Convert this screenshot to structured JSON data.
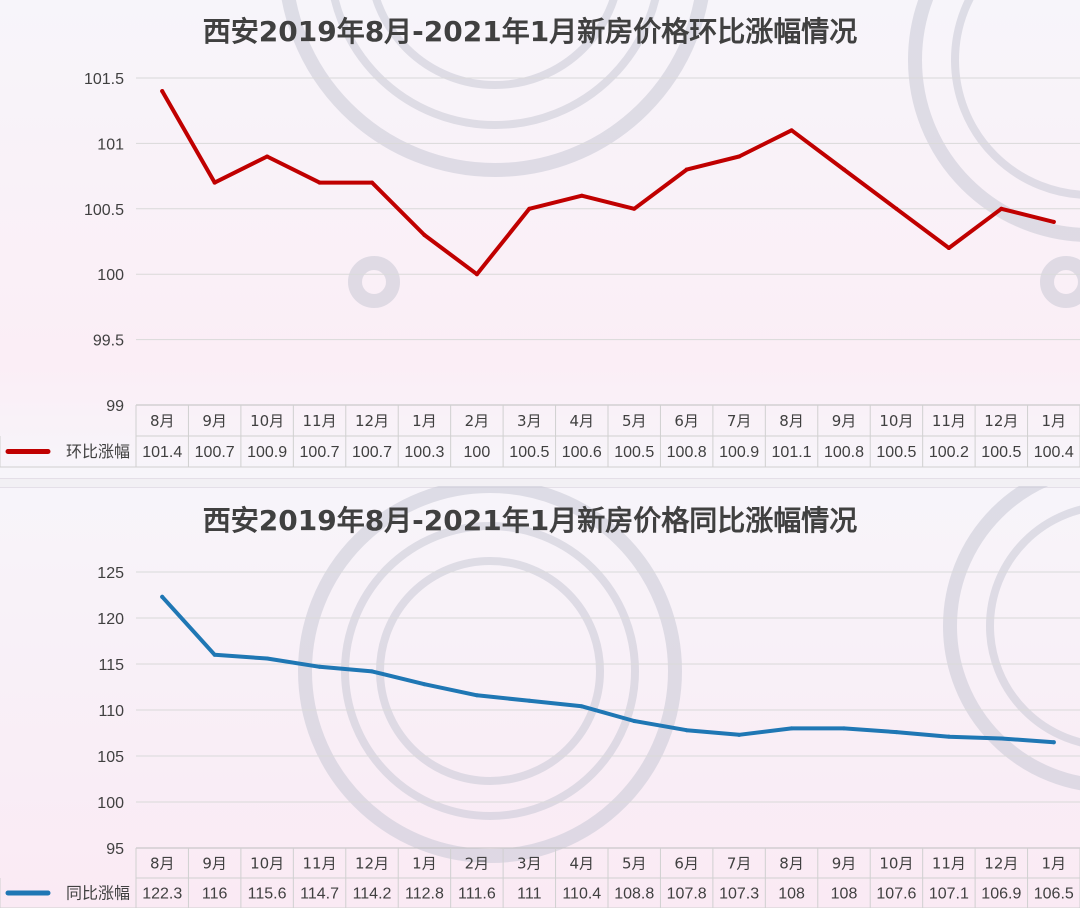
{
  "chart_data": [
    {
      "type": "line",
      "title": "西安2019年8月-2021年1月新房价格环比涨幅情况",
      "categories": [
        "8月",
        "9月",
        "10月",
        "11月",
        "12月",
        "1月",
        "2月",
        "3月",
        "4月",
        "5月",
        "6月",
        "7月",
        "8月",
        "9月",
        "10月",
        "11月",
        "12月",
        "1月"
      ],
      "series": [
        {
          "name": "环比涨幅",
          "values": [
            101.4,
            100.7,
            100.9,
            100.7,
            100.7,
            100.3,
            100,
            100.5,
            100.6,
            100.5,
            100.8,
            100.9,
            101.1,
            100.8,
            100.5,
            100.2,
            100.5,
            100.4
          ]
        }
      ],
      "ylim": [
        99,
        101.5
      ],
      "yticks": [
        99,
        99.5,
        100,
        100.5,
        101,
        101.5
      ],
      "grid": true,
      "legend": "data-table",
      "color": "#c00000"
    },
    {
      "type": "line",
      "title": "西安2019年8月-2021年1月新房价格同比涨幅情况",
      "categories": [
        "8月",
        "9月",
        "10月",
        "11月",
        "12月",
        "1月",
        "2月",
        "3月",
        "4月",
        "5月",
        "6月",
        "7月",
        "8月",
        "9月",
        "10月",
        "11月",
        "12月",
        "1月"
      ],
      "series": [
        {
          "name": "同比涨幅",
          "values": [
            122.3,
            116,
            115.6,
            114.7,
            114.2,
            112.8,
            111.6,
            111,
            110.4,
            108.8,
            107.8,
            107.3,
            108,
            108,
            107.6,
            107.1,
            106.9,
            106.5
          ]
        }
      ],
      "ylim": [
        95,
        125
      ],
      "yticks": [
        95,
        100,
        105,
        110,
        115,
        120,
        125
      ],
      "grid": true,
      "legend": "data-table",
      "color": "#1f77b4"
    }
  ]
}
